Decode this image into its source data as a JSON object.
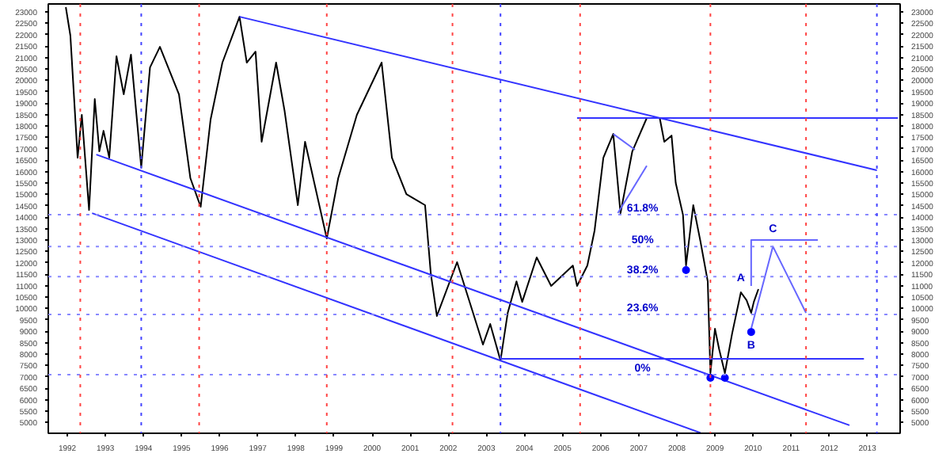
{
  "chart_data": {
    "type": "line",
    "xlim": [
      1991.5,
      2013.86
    ],
    "ylim": [
      4530,
      23350
    ],
    "y2lim": [
      4530,
      23350
    ],
    "xticks": [
      1992,
      1993,
      1994,
      1995,
      1996,
      1997,
      1998,
      1999,
      2000,
      2001,
      2002,
      2003,
      2004,
      2005,
      2006,
      2007,
      2008,
      2009,
      2010,
      2011,
      2012,
      2013
    ],
    "yticks": [
      5000,
      5500,
      6000,
      6500,
      7000,
      7500,
      8000,
      8500,
      9000,
      9500,
      10000,
      10500,
      11000,
      11500,
      12000,
      12500,
      13000,
      13500,
      14000,
      14500,
      15000,
      15500,
      16000,
      16500,
      17000,
      17500,
      18000,
      18500,
      19000,
      19500,
      20000,
      20500,
      21000,
      21500,
      22000,
      22500,
      23000
    ],
    "y2ticks": [
      5000,
      5500,
      6000,
      6500,
      7000,
      7500,
      8000,
      8500,
      9000,
      9500,
      10000,
      10500,
      11000,
      11500,
      12000,
      12500,
      13000,
      13500,
      14000,
      14500,
      15000,
      15500,
      16000,
      16500,
      17000,
      17500,
      18000,
      18500,
      19000,
      19500,
      20000,
      20500,
      21000,
      21500,
      22000,
      22500,
      23000
    ],
    "grid": false,
    "marker": "none",
    "line_style": "solid",
    "series": [
      {
        "color": "#000000",
        "x": [
          1991.96,
          1992.08,
          1992.27,
          1992.38,
          1992.57,
          1992.72,
          1992.84,
          1992.95,
          1993.1,
          1993.29,
          1993.48,
          1993.67,
          1993.94,
          1994.17,
          1994.43,
          1994.93,
          1995.23,
          1995.5,
          1995.76,
          1996.07,
          1996.52,
          1996.71,
          1996.94,
          1997.1,
          1997.48,
          1997.7,
          1998.05,
          1998.24,
          1998.81,
          1999.11,
          1999.6,
          2000.25,
          2000.52,
          2000.9,
          2001.39,
          2001.54,
          2001.7,
          2002.23,
          2002.65,
          2002.91,
          2003.1,
          2003.37,
          2003.56,
          2003.79,
          2003.94,
          2004.32,
          2004.7,
          2005.27,
          2005.38,
          2005.65,
          2005.84,
          2006.07,
          2006.33,
          2006.52,
          2006.83,
          2007.21,
          2007.55,
          2007.67,
          2007.86,
          2007.97,
          2008.16,
          2008.24,
          2008.43,
          2008.62,
          2008.81,
          2008.88,
          2009.0,
          2009.11,
          2009.26,
          2009.45,
          2009.68,
          2009.83,
          2009.95,
          2010.02,
          2010.14
        ],
        "values": [
          23210,
          21960,
          16610,
          18490,
          14320,
          19180,
          16890,
          17790,
          16610,
          21060,
          19390,
          21130,
          16190,
          20570,
          21470,
          19390,
          15710,
          14460,
          18280,
          20780,
          22790,
          20780,
          21260,
          17310,
          20780,
          18690,
          14530,
          17310,
          13070,
          15710,
          18490,
          20780,
          16610,
          15010,
          14530,
          11540,
          9670,
          12030,
          9810,
          8420,
          9320,
          7720,
          9810,
          11190,
          10290,
          12240,
          10990,
          11880,
          10990,
          11880,
          13420,
          16610,
          17650,
          14180,
          16890,
          18350,
          18350,
          17310,
          17580,
          15500,
          14110,
          11890,
          14530,
          12930,
          11190,
          7170,
          9110,
          8210,
          7170,
          8900,
          10710,
          10360,
          9810,
          10290,
          10850
        ]
      },
      {
        "color": "#3333ff",
        "x": [
          1996.52,
          2013.25
        ],
        "values": [
          22790,
          16060
        ]
      },
      {
        "color": "#3333ff",
        "x": [
          1992.76,
          2012.53
        ],
        "values": [
          16750,
          4880
        ]
      },
      {
        "color": "#3333ff",
        "x": [
          1992.65,
          2008.62
        ],
        "values": [
          14180,
          4550
        ]
      },
      {
        "color": "#3333ff",
        "x": [
          2005.38,
          2013.8
        ],
        "values": [
          18350,
          18350
        ]
      },
      {
        "color": "#3333ff",
        "x": [
          2003.37,
          2012.91
        ],
        "values": [
          7790,
          7790
        ]
      },
      {
        "color": "#6666ff",
        "x": [
          2009.95,
          2010.52,
          2011.39
        ],
        "values": [
          9110,
          12720,
          9810
        ]
      },
      {
        "color": "#6666ff",
        "x": [
          2009.95,
          2009.95,
          2011.7
        ],
        "values": [
          10990,
          13000,
          13000
        ]
      },
      {
        "color": "#6666ff",
        "x": [
          2006.33,
          2006.9
        ],
        "values": [
          17650,
          16960
        ]
      },
      {
        "color": "#6666ff",
        "x": [
          2006.45,
          2007.21
        ],
        "values": [
          14180,
          16260
        ]
      },
      {
        "type": "scatter",
        "marker": "circle",
        "color": "#0000ff",
        "x": [
          2008.24,
          2008.88,
          2009.26,
          2009.95
        ],
        "values": [
          11680,
          6960,
          6960,
          8970
        ]
      }
    ],
    "ref_lines": [
      {
        "axis": "y",
        "value": 14110,
        "color": "#8888ff",
        "line_style": "dotted"
      },
      {
        "axis": "y",
        "value": 12720,
        "color": "#8888ff",
        "line_style": "dotted"
      },
      {
        "axis": "y",
        "value": 11400,
        "color": "#8888ff",
        "line_style": "dotted"
      },
      {
        "axis": "y",
        "value": 9740,
        "color": "#8888ff",
        "line_style": "dotted"
      },
      {
        "axis": "y",
        "value": 7100,
        "color": "#8888ff",
        "line_style": "dotted"
      },
      {
        "axis": "x",
        "value": 1992.34,
        "color": "#ff4444",
        "line_style": "dotted"
      },
      {
        "axis": "x",
        "value": 1993.94,
        "color": "#4444ff",
        "line_style": "dotted"
      },
      {
        "axis": "x",
        "value": 1995.46,
        "color": "#ff4444",
        "line_style": "dotted"
      },
      {
        "axis": "x",
        "value": 1998.81,
        "color": "#ff4444",
        "line_style": "dotted"
      },
      {
        "axis": "x",
        "value": 2002.11,
        "color": "#ff4444",
        "line_style": "dotted"
      },
      {
        "axis": "x",
        "value": 2003.37,
        "color": "#4444ff",
        "line_style": "dotted"
      },
      {
        "axis": "x",
        "value": 2005.46,
        "color": "#ff4444",
        "line_style": "dotted"
      },
      {
        "axis": "x",
        "value": 2008.88,
        "color": "#ff4444",
        "line_style": "dotted"
      },
      {
        "axis": "x",
        "value": 2011.39,
        "color": "#ff4444",
        "line_style": "dotted"
      },
      {
        "axis": "x",
        "value": 2013.25,
        "color": "#4444ff",
        "line_style": "dotted"
      }
    ],
    "annotations": [
      {
        "text": "61.8%",
        "x": 2007.1,
        "y": 14110
      },
      {
        "text": "50%",
        "x": 2007.1,
        "y": 12720
      },
      {
        "text": "38.2%",
        "x": 2007.1,
        "y": 11400
      },
      {
        "text": "23.6%",
        "x": 2007.1,
        "y": 9740
      },
      {
        "text": "0%",
        "x": 2007.1,
        "y": 7100
      },
      {
        "text": "A",
        "x": 2009.68,
        "y": 11060
      },
      {
        "text": "B",
        "x": 2009.95,
        "y": 8100
      },
      {
        "text": "C",
        "x": 2010.52,
        "y": 13210
      }
    ]
  }
}
